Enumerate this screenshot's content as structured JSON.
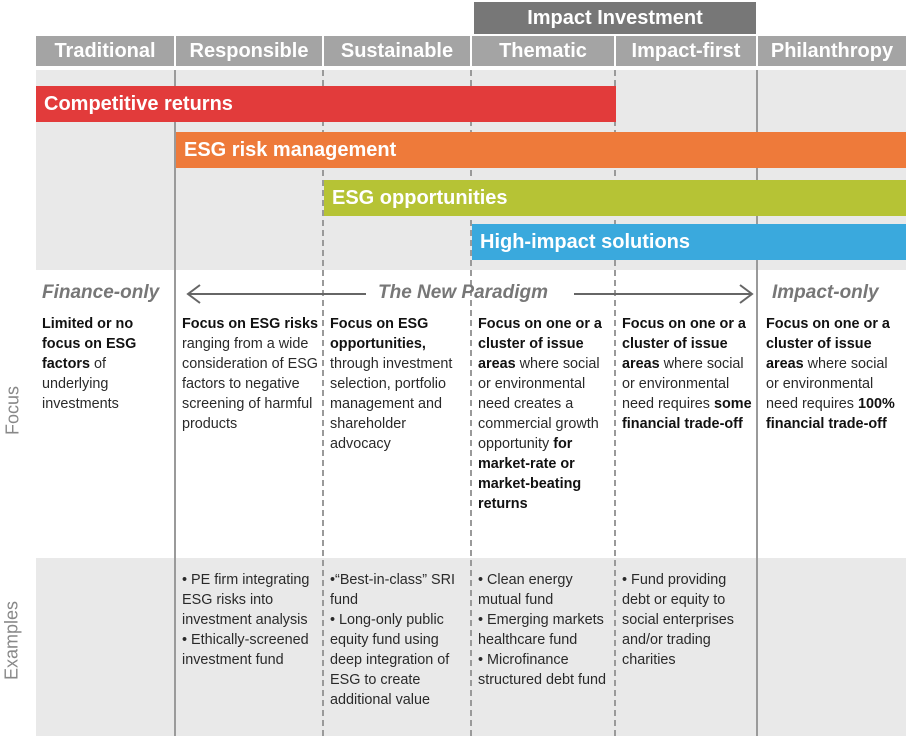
{
  "top_header": "Impact Investment",
  "columns": [
    "Traditional",
    "Responsible",
    "Sustainable",
    "Thematic",
    "Impact-first",
    "Philanthropy"
  ],
  "bars": [
    {
      "label": "Competitive returns",
      "color": "#e23b3b"
    },
    {
      "label": "ESG risk management",
      "color": "#ee7a3a"
    },
    {
      "label": "ESG opportunities",
      "color": "#b6c335"
    },
    {
      "label": "High-impact solutions",
      "color": "#3aa9dd"
    }
  ],
  "paradigm": {
    "left": "Finance-only",
    "center": "The New Paradigm",
    "right": "Impact-only"
  },
  "row_labels": {
    "focus": "Focus",
    "examples": "Examples"
  },
  "focus": [
    [
      {
        "t": "Limited or no focus on ESG factors",
        "b": true
      },
      {
        "t": " of underlying investments",
        "b": false
      }
    ],
    [
      {
        "t": "Focus on ESG risks",
        "b": true
      },
      {
        "t": " ranging from a wide consideration of ESG factors to negative screening of harmful products",
        "b": false
      }
    ],
    [
      {
        "t": "Focus on ESG opportunities,",
        "b": true
      },
      {
        "t": " through investment selection, portfolio management and shareholder advocacy",
        "b": false
      }
    ],
    [
      {
        "t": "Focus on one or a cluster of issue areas",
        "b": true
      },
      {
        "t": " where social or environmental need creates a commercial growth opportunity ",
        "b": false
      },
      {
        "t": "for market-rate or market-beating returns",
        "b": true
      }
    ],
    [
      {
        "t": "Focus on one or a cluster of issue areas",
        "b": true
      },
      {
        "t": "  where social or environmental need requires ",
        "b": false
      },
      {
        "t": "some financial trade-off",
        "b": true
      }
    ],
    [
      {
        "t": "Focus on one or a cluster of issue areas",
        "b": true
      },
      {
        "t": " where social or environmental need requires ",
        "b": false
      },
      {
        "t": "100% financial trade-off",
        "b": true
      }
    ]
  ],
  "examples": [
    [],
    [
      "• PE firm integrating ESG risks into investment analysis",
      "• Ethically-screened investment fund"
    ],
    [
      "•“Best-in-class” SRI fund",
      "• Long-only public equity fund using deep integration of ESG to create additional value"
    ],
    [
      "• Clean energy mutual fund",
      "• Emerging markets healthcare fund",
      "• Microfinance structured debt fund"
    ],
    [
      "• Fund providing debt or equity to social enterprises and/or trading charities"
    ],
    []
  ]
}
